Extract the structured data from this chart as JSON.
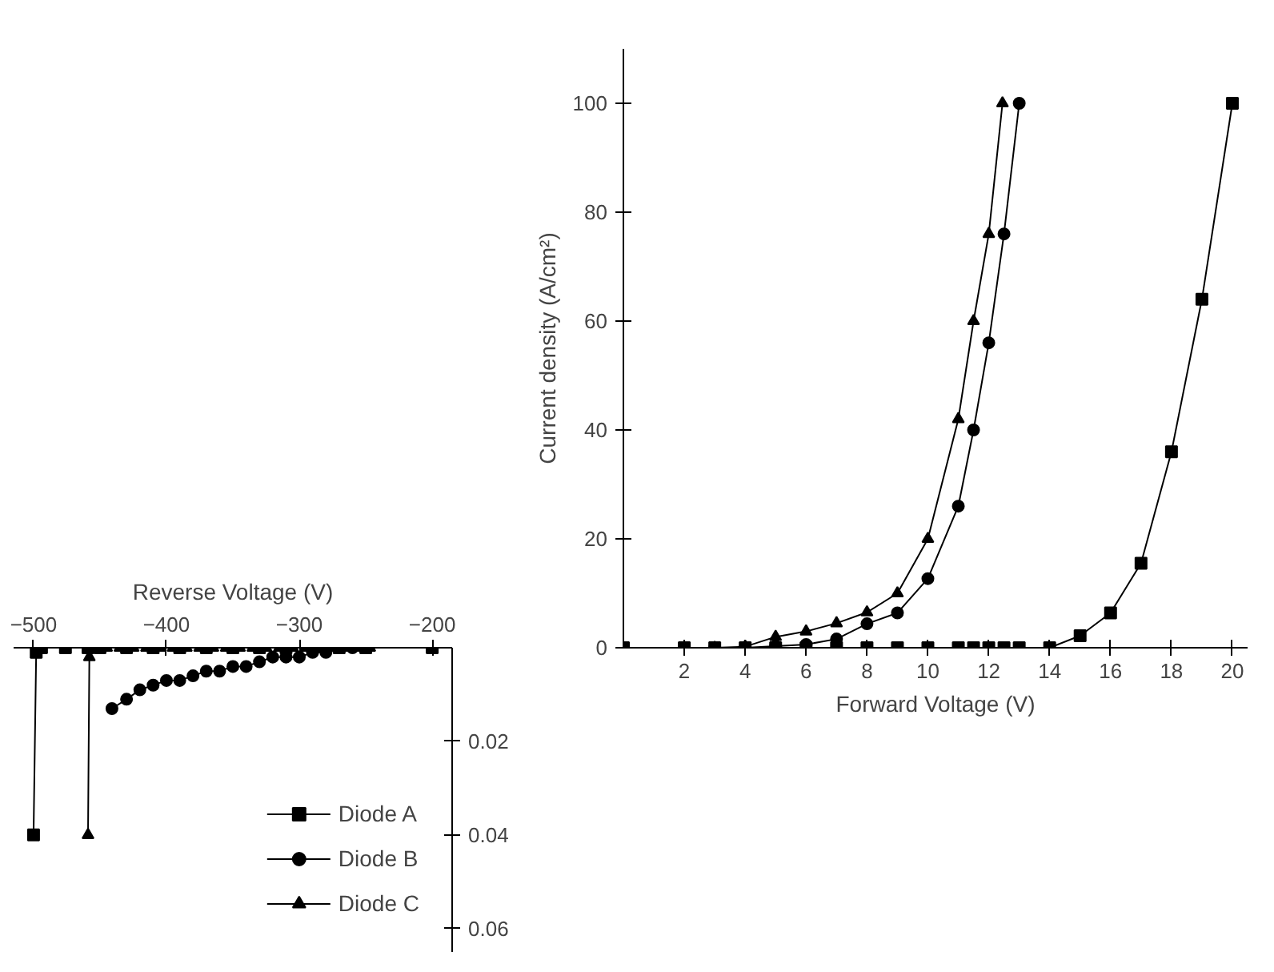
{
  "chart_data": [
    {
      "type": "line",
      "xlabel": "Reverse Voltage (V)",
      "xlim": [
        -515,
        -185
      ],
      "xticks": [
        -500,
        -400,
        -300,
        -200
      ],
      "ylim": [
        0.065,
        0
      ],
      "yticks": [
        0.02,
        0.04,
        0.06
      ],
      "legend": "bottom right",
      "series": [
        {
          "name": "Diode A",
          "color": "#000000",
          "marker": "square",
          "x": [
            -500,
            -498,
            -494,
            -476,
            -459,
            -450,
            -430,
            -410,
            -390,
            -370,
            -350,
            -330,
            -310,
            -290,
            -270,
            -250,
            -200
          ],
          "values": [
            0.04,
            0.001,
            0,
            0,
            0,
            0,
            0,
            0,
            0,
            0,
            0,
            0,
            0,
            0,
            0,
            0,
            0
          ]
        },
        {
          "name": "Diode B",
          "color": "#000000",
          "marker": "circle",
          "x": [
            -441,
            -430,
            -420,
            -410,
            -400,
            -390,
            -380,
            -370,
            -360,
            -350,
            -340,
            -330,
            -320,
            -310,
            -300,
            -290,
            -280,
            -270,
            -260,
            -250,
            -200
          ],
          "values": [
            0.013,
            0.011,
            0.009,
            0.008,
            0.007,
            0.007,
            0.006,
            0.005,
            0.005,
            0.004,
            0.004,
            0.003,
            0.002,
            0.002,
            0.002,
            0.001,
            0.001,
            0,
            0,
            0,
            0
          ]
        },
        {
          "name": "Diode C",
          "color": "#000000",
          "marker": "triangle",
          "x": [
            -459,
            -458,
            -455,
            -445,
            -435,
            -425,
            -415,
            -405,
            -395,
            -385,
            -375,
            -365,
            -355,
            -345,
            -335,
            -325,
            -315,
            -305,
            -295,
            -285,
            -275,
            -265,
            -255,
            -247,
            -200
          ],
          "values": [
            0.04,
            0.002,
            0,
            0,
            0,
            0,
            0,
            0,
            0,
            0,
            0,
            0,
            0,
            0,
            0,
            0,
            0,
            0,
            0,
            0,
            0,
            0,
            0,
            0,
            0
          ]
        }
      ]
    },
    {
      "type": "line",
      "xlabel": "Forward Voltage (V)",
      "ylabel": "Current density (A/cm²)",
      "xlim": [
        0,
        20.5
      ],
      "xticks": [
        2,
        4,
        6,
        8,
        10,
        12,
        14,
        16,
        18,
        20
      ],
      "ylim": [
        0,
        110
      ],
      "yticks": [
        0,
        20,
        40,
        60,
        80,
        100
      ],
      "series": [
        {
          "color": "#000000",
          "marker": "square",
          "x": [
            0,
            2,
            3,
            4,
            5,
            6,
            7,
            8,
            9,
            10,
            11,
            11.5,
            12,
            12.5,
            13,
            14,
            15,
            16,
            17,
            18,
            19,
            20
          ],
          "values": [
            0,
            0,
            0,
            0,
            0,
            0,
            0,
            0,
            0,
            0,
            0,
            0,
            0,
            0,
            0,
            0,
            2.2,
            6.4,
            15.5,
            36,
            64,
            100
          ]
        },
        {
          "color": "#000000",
          "marker": "circle",
          "x": [
            0,
            2,
            3,
            4,
            5,
            6,
            7,
            8,
            9,
            10,
            11,
            11.5,
            12,
            12.5,
            13
          ],
          "values": [
            0,
            0,
            0,
            0,
            0.3,
            0.6,
            1.6,
            4.4,
            6.4,
            12.7,
            26,
            40,
            56,
            76,
            100
          ]
        },
        {
          "color": "#000000",
          "marker": "triangle",
          "x": [
            0,
            2,
            3,
            4,
            5,
            6,
            7,
            8,
            9,
            10,
            11,
            11.5,
            12,
            12.45
          ],
          "values": [
            0,
            0,
            0,
            0.2,
            2,
            3,
            4.5,
            6.5,
            10,
            20,
            42,
            60,
            76,
            100
          ]
        }
      ]
    }
  ]
}
